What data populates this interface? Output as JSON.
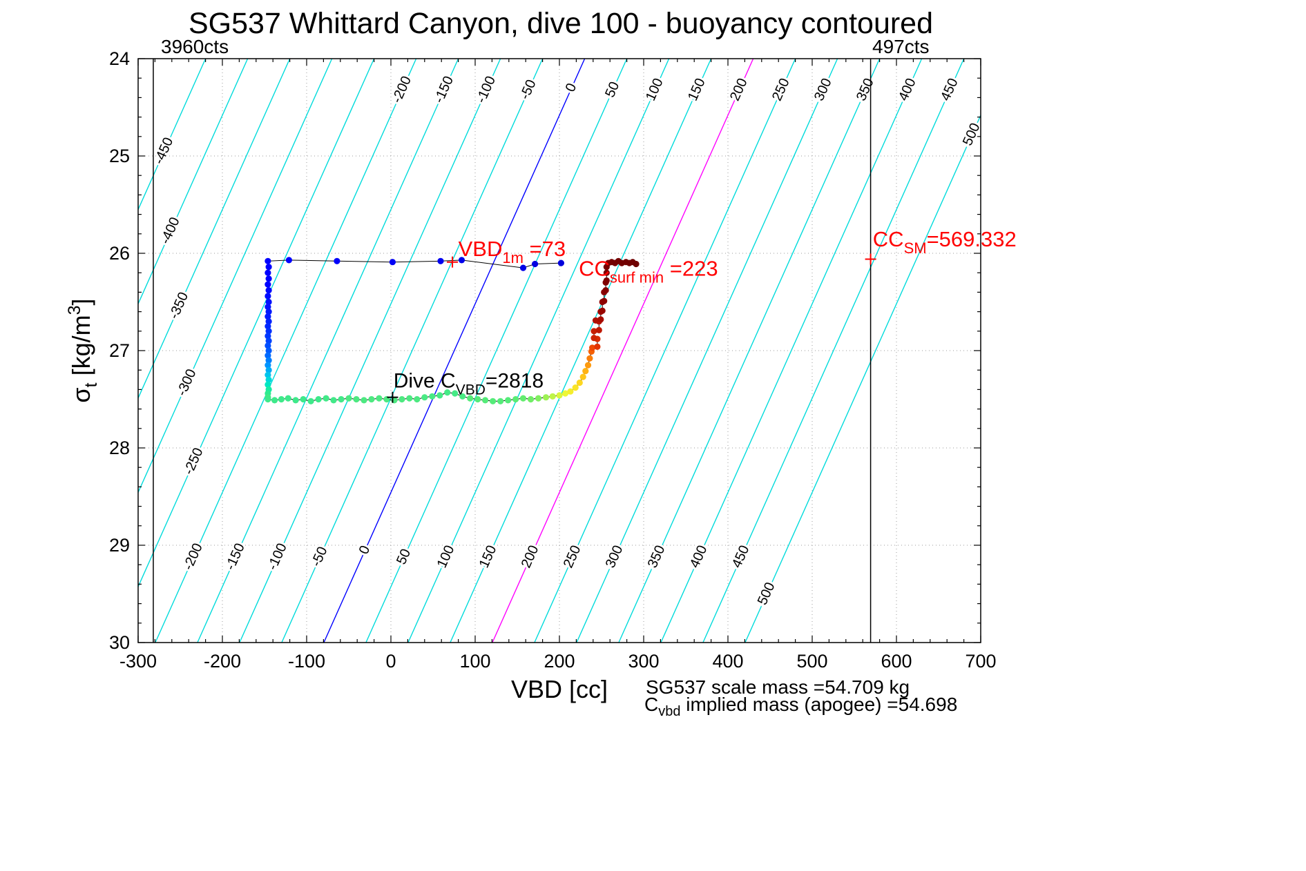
{
  "title": "SG537 Whittard Canyon, dive 100 - buoyancy contoured",
  "top_labels": {
    "left_counts": "3960cts",
    "right_counts": "497cts"
  },
  "footer": {
    "line1": "SG537 scale mass =54.709 kg",
    "line2_pre": "C",
    "line2_sub": "vbd",
    "line2_post": " implied mass (apogee) =54.698"
  },
  "chart_data": {
    "type": "scatter",
    "title": "SG537 Whittard Canyon, dive 100 - buoyancy contoured",
    "xlabel": "VBD [cc]",
    "ylabel_segments": [
      {
        "t": "σ"
      },
      {
        "t": "t",
        "sub": true
      },
      {
        "t": " [kg/m"
      },
      {
        "t": "3",
        "sup": true
      },
      {
        "t": "]"
      }
    ],
    "xlim": [
      -300,
      700
    ],
    "ylim": [
      24,
      30
    ],
    "ydir": "reverse",
    "grid": true,
    "xticks": [
      -300,
      -200,
      -100,
      0,
      100,
      200,
      300,
      400,
      500,
      600,
      700
    ],
    "yticks": [
      24,
      25,
      26,
      27,
      28,
      29,
      30
    ],
    "minor_x": 20,
    "minor_y": 0.2,
    "contours": {
      "levels_min": -450,
      "levels_max": 500,
      "step": 50,
      "color_default": "#00DBDB",
      "special_colors": {
        "0": "#0000FF",
        "200": "#FF00FF"
      },
      "geometry": {
        "offset": 230,
        "slope": -51.6
      },
      "labels": [
        {
          "level": -450,
          "sigma": 24.95
        },
        {
          "level": -400,
          "sigma": 25.77
        },
        {
          "level": -350,
          "sigma": 26.54
        },
        {
          "level": -300,
          "sigma": 27.33
        },
        {
          "level": -250,
          "sigma": 28.14
        },
        {
          "level": -200,
          "sigma": 24.32
        },
        {
          "level": -150,
          "sigma": 24.32
        },
        {
          "level": -100,
          "sigma": 24.32
        },
        {
          "level": -50,
          "sigma": 24.32
        },
        {
          "level": 0,
          "sigma": 24.3
        },
        {
          "level": 50,
          "sigma": 24.32
        },
        {
          "level": 100,
          "sigma": 24.32
        },
        {
          "level": 150,
          "sigma": 24.32
        },
        {
          "level": 200,
          "sigma": 24.32
        },
        {
          "level": 250,
          "sigma": 24.32
        },
        {
          "level": 300,
          "sigma": 24.32
        },
        {
          "level": 350,
          "sigma": 24.32
        },
        {
          "level": 400,
          "sigma": 24.32
        },
        {
          "level": 450,
          "sigma": 24.32
        },
        {
          "level": 500,
          "sigma": 24.78
        },
        {
          "level": -200,
          "sigma": 29.12
        },
        {
          "level": -150,
          "sigma": 29.12
        },
        {
          "level": -100,
          "sigma": 29.12
        },
        {
          "level": -50,
          "sigma": 29.12
        },
        {
          "level": 0,
          "sigma": 29.05
        },
        {
          "level": 50,
          "sigma": 29.12
        },
        {
          "level": 100,
          "sigma": 29.12
        },
        {
          "level": 150,
          "sigma": 29.12
        },
        {
          "level": 200,
          "sigma": 29.12
        },
        {
          "level": 250,
          "sigma": 29.12
        },
        {
          "level": 300,
          "sigma": 29.12
        },
        {
          "level": 350,
          "sigma": 29.12
        },
        {
          "level": 400,
          "sigma": 29.12
        },
        {
          "level": 450,
          "sigma": 29.12
        },
        {
          "level": 500,
          "sigma": 29.5
        }
      ]
    },
    "vlines": [
      {
        "vbd": -282,
        "label": "3960cts",
        "color": "#000000"
      },
      {
        "vbd": 569.332,
        "label": "497cts",
        "color": "#000000"
      }
    ],
    "markers": [
      {
        "vbd": 73,
        "sigma": 26.09,
        "glyph": "+",
        "color": "#FF0000"
      },
      {
        "vbd": 569.332,
        "sigma": 26.06,
        "glyph": "+",
        "color": "#FF0000"
      },
      {
        "vbd": 2,
        "sigma": 27.48,
        "glyph": "+",
        "color": "#000000"
      }
    ],
    "annotations": [
      {
        "name": "vbd-1m",
        "color": "#FF0000",
        "vbd": 80,
        "sigma": 26.03,
        "size": 31,
        "segments": [
          {
            "t": "VBD"
          },
          {
            "t": "1m",
            "sub": true
          },
          {
            "t": " =73"
          }
        ]
      },
      {
        "name": "cc-surf-min",
        "color": "#FF0000",
        "vbd": 223,
        "sigma": 26.23,
        "size": 31,
        "segments": [
          {
            "t": "CC"
          },
          {
            "t": "surf min",
            "sub": true
          },
          {
            "t": " =223"
          }
        ]
      },
      {
        "name": "cc-sm",
        "color": "#FF0000",
        "vbd": 572,
        "sigma": 25.93,
        "size": 31,
        "segments": [
          {
            "t": "CC"
          },
          {
            "t": "SM",
            "sub": true
          },
          {
            "t": "=569.332"
          }
        ]
      },
      {
        "name": "dive-cvbd",
        "color": "#000000",
        "vbd": 3,
        "sigma": 27.38,
        "size": 30,
        "segments": [
          {
            "t": "Dive C"
          },
          {
            "t": "VBD",
            "sub": true
          },
          {
            "t": "=2818"
          }
        ]
      }
    ],
    "track": {
      "line_color": "#000000",
      "points": [
        [
          202,
          26.1,
          "#0000DC"
        ],
        [
          171,
          26.11,
          "#0000E1"
        ],
        [
          157,
          26.15,
          "#0000E6"
        ],
        [
          84,
          26.07,
          "#0000EB"
        ],
        [
          59,
          26.08,
          "#0000F0"
        ],
        [
          2,
          26.09,
          "#0000F5"
        ],
        [
          -64,
          26.08,
          "#0000FA"
        ],
        [
          -121,
          26.07,
          "#0000FF"
        ],
        [
          -146,
          26.08,
          "#0000FF"
        ],
        [
          -145,
          26.14,
          "#0000FF"
        ],
        [
          -146,
          26.2,
          "#0000FF"
        ],
        [
          -145,
          26.26,
          "#0000FF"
        ],
        [
          -146,
          26.32,
          "#0004FF"
        ],
        [
          -145,
          26.38,
          "#0008FF"
        ],
        [
          -146,
          26.44,
          "#000CFF"
        ],
        [
          -145,
          26.5,
          "#0010FF"
        ],
        [
          -146,
          26.55,
          "#0014FF"
        ],
        [
          -145,
          26.6,
          "#0018FF"
        ],
        [
          -146,
          26.65,
          "#001CFF"
        ],
        [
          -145,
          26.7,
          "#0022FF"
        ],
        [
          -146,
          26.75,
          "#0028FF"
        ],
        [
          -145,
          26.8,
          "#0030FF"
        ],
        [
          -146,
          26.85,
          "#0038FF"
        ],
        [
          -145,
          26.9,
          "#0042FF"
        ],
        [
          -146,
          26.95,
          "#004EFF"
        ],
        [
          -145,
          27.0,
          "#005AFF"
        ],
        [
          -146,
          27.05,
          "#006AFF"
        ],
        [
          -145,
          27.1,
          "#007EFF"
        ],
        [
          -146,
          27.15,
          "#0094FF"
        ],
        [
          -145,
          27.2,
          "#00ACF6"
        ],
        [
          -146,
          27.25,
          "#00C4EC"
        ],
        [
          -145,
          27.3,
          "#00D8DA"
        ],
        [
          -146,
          27.35,
          "#00E6C2"
        ],
        [
          -145,
          27.4,
          "#16ECA4"
        ],
        [
          -146,
          27.44,
          "#2DEB90"
        ],
        [
          -146,
          27.48,
          "#41EA84"
        ],
        [
          -146,
          27.5,
          "#3EE98A"
        ],
        [
          -138,
          27.51,
          "#3EE98A"
        ],
        [
          -130,
          27.5,
          "#3EE98A"
        ],
        [
          -122,
          27.49,
          "#3EE98A"
        ],
        [
          -113,
          27.51,
          "#3EE98A"
        ],
        [
          -104,
          27.5,
          "#3EE98A"
        ],
        [
          -95,
          27.52,
          "#3EE98A"
        ],
        [
          -86,
          27.5,
          "#3EE98A"
        ],
        [
          -77,
          27.49,
          "#42E988"
        ],
        [
          -68,
          27.51,
          "#42E988"
        ],
        [
          -59,
          27.5,
          "#42E988"
        ],
        [
          -50,
          27.49,
          "#4DE981"
        ],
        [
          -41,
          27.5,
          "#4DE981"
        ],
        [
          -32,
          27.51,
          "#4DE981"
        ],
        [
          -23,
          27.5,
          "#4DE981"
        ],
        [
          -14,
          27.49,
          "#4DE981"
        ],
        [
          -5,
          27.5,
          "#4DE981"
        ],
        [
          4,
          27.51,
          "#4DE981"
        ],
        [
          13,
          27.5,
          "#4DE981"
        ],
        [
          22,
          27.49,
          "#4DE981"
        ],
        [
          31,
          27.5,
          "#4DE981"
        ],
        [
          40,
          27.48,
          "#4AEA84"
        ],
        [
          49,
          27.47,
          "#47EA85"
        ],
        [
          58,
          27.46,
          "#45EA86"
        ],
        [
          67,
          27.43,
          "#45EA86"
        ],
        [
          76,
          27.44,
          "#45EA86"
        ],
        [
          85,
          27.47,
          "#49EB83"
        ],
        [
          94,
          27.49,
          "#55EB79"
        ],
        [
          103,
          27.5,
          "#55EB79"
        ],
        [
          112,
          27.51,
          "#55EB79"
        ],
        [
          121,
          27.52,
          "#55EB79"
        ],
        [
          130,
          27.52,
          "#55EB79"
        ],
        [
          139,
          27.51,
          "#55EB79"
        ],
        [
          148,
          27.5,
          "#5BEC74"
        ],
        [
          157,
          27.49,
          "#63EC6F"
        ],
        [
          166,
          27.5,
          "#70ED67"
        ],
        [
          175,
          27.49,
          "#7FEF60"
        ],
        [
          184,
          27.48,
          "#9DF253"
        ],
        [
          192,
          27.47,
          "#BEF447"
        ],
        [
          200,
          27.46,
          "#D9F63C"
        ],
        [
          207,
          27.44,
          "#EDF736"
        ],
        [
          213,
          27.42,
          "#F5EE2D"
        ],
        [
          219,
          27.38,
          "#FAE426"
        ],
        [
          224,
          27.33,
          "#FED71F"
        ],
        [
          228,
          27.27,
          "#FFC619"
        ],
        [
          231,
          27.21,
          "#FFB213"
        ],
        [
          234,
          27.15,
          "#FE9A0E"
        ],
        [
          236,
          27.08,
          "#FA7E09"
        ],
        [
          238,
          27.01,
          "#F56105"
        ],
        [
          239,
          26.97,
          "#EF4702"
        ],
        [
          245,
          26.96,
          "#E23301"
        ],
        [
          245,
          26.88,
          "#D82B01"
        ],
        [
          241,
          26.87,
          "#CE2400"
        ],
        [
          241,
          26.8,
          "#C61E00"
        ],
        [
          247,
          26.79,
          "#BE1800"
        ],
        [
          247,
          26.7,
          "#B61300"
        ],
        [
          243,
          26.69,
          "#AE0F00"
        ],
        [
          249,
          26.68,
          "#A60B00"
        ],
        [
          249,
          26.6,
          "#9E0800"
        ],
        [
          251,
          26.59,
          "#980500"
        ],
        [
          251,
          26.5,
          "#920300"
        ],
        [
          253,
          26.49,
          "#8C0100"
        ],
        [
          253,
          26.4,
          "#880000"
        ],
        [
          255,
          26.38,
          "#840000"
        ],
        [
          255,
          26.3,
          "#800000"
        ],
        [
          256,
          26.28,
          "#7C0000"
        ],
        [
          256,
          26.2,
          "#7A0000"
        ],
        [
          256,
          26.14,
          "#780000"
        ],
        [
          258,
          26.1,
          "#760000"
        ],
        [
          262,
          26.09,
          "#750000"
        ],
        [
          266,
          26.1,
          "#740000"
        ],
        [
          270,
          26.08,
          "#730000"
        ],
        [
          274,
          26.1,
          "#720000"
        ],
        [
          279,
          26.09,
          "#710000"
        ],
        [
          283,
          26.1,
          "#700000"
        ],
        [
          287,
          26.09,
          "#6F0000"
        ],
        [
          291,
          26.11,
          "#6E0000"
        ]
      ]
    }
  }
}
